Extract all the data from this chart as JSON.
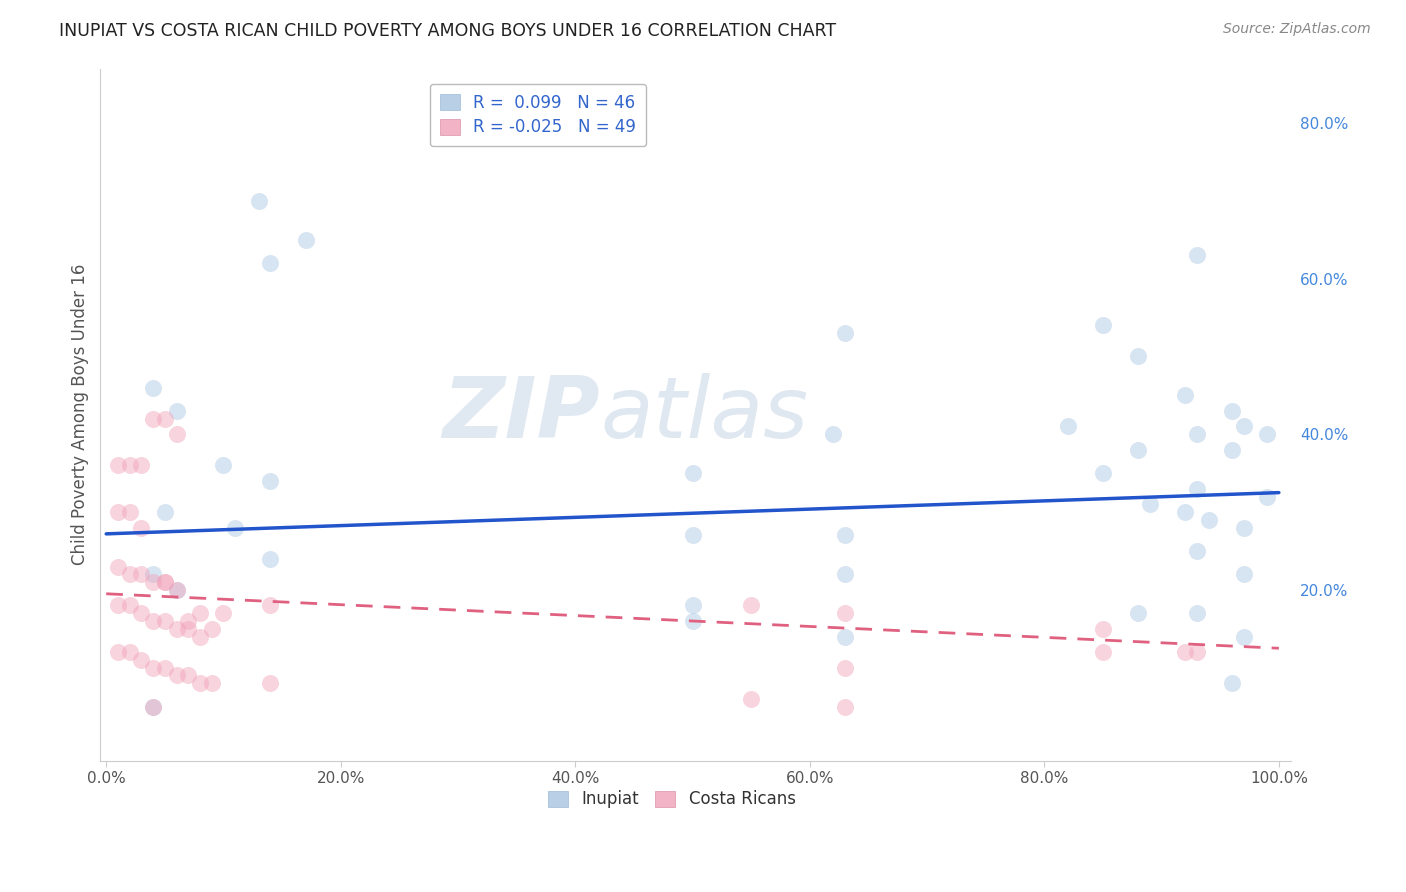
{
  "title": "INUPIAT VS COSTA RICAN CHILD POVERTY AMONG BOYS UNDER 16 CORRELATION CHART",
  "source": "Source: ZipAtlas.com",
  "ylabel": "Child Poverty Among Boys Under 16",
  "watermark_zip": "ZIP",
  "watermark_atlas": "atlas",
  "inupiat_color": "#a8c4e0",
  "costa_color": "#f0a0b8",
  "inupiat_line_color": "#2255cc",
  "costa_line_color": "#e06080",
  "right_axis_color": "#4488dd",
  "inupiat_x": [
    0.13,
    0.17,
    0.14,
    0.93,
    0.63,
    0.85,
    0.88,
    0.92,
    0.96,
    0.97,
    0.99,
    0.93,
    0.82,
    0.88,
    0.96,
    0.62,
    0.5,
    0.85,
    0.04,
    0.06,
    0.1,
    0.14,
    0.05,
    0.11,
    0.5,
    0.63,
    0.89,
    0.92,
    0.99,
    0.94,
    0.97,
    0.93,
    0.93,
    0.97,
    0.63,
    0.5,
    0.5,
    0.63,
    0.88,
    0.93,
    0.96,
    0.97,
    0.04,
    0.06,
    0.14,
    0.04
  ],
  "inupiat_y": [
    0.7,
    0.65,
    0.62,
    0.63,
    0.53,
    0.54,
    0.5,
    0.45,
    0.43,
    0.41,
    0.4,
    0.4,
    0.41,
    0.38,
    0.38,
    0.4,
    0.35,
    0.35,
    0.46,
    0.43,
    0.36,
    0.34,
    0.3,
    0.28,
    0.27,
    0.27,
    0.31,
    0.3,
    0.32,
    0.29,
    0.28,
    0.33,
    0.25,
    0.22,
    0.22,
    0.18,
    0.16,
    0.14,
    0.17,
    0.17,
    0.08,
    0.14,
    0.22,
    0.2,
    0.24,
    0.05
  ],
  "costa_x": [
    0.01,
    0.02,
    0.03,
    0.01,
    0.02,
    0.03,
    0.04,
    0.05,
    0.06,
    0.01,
    0.02,
    0.03,
    0.04,
    0.05,
    0.01,
    0.02,
    0.03,
    0.04,
    0.05,
    0.06,
    0.07,
    0.08,
    0.01,
    0.02,
    0.03,
    0.04,
    0.05,
    0.06,
    0.07,
    0.08,
    0.09,
    0.05,
    0.06,
    0.07,
    0.08,
    0.09,
    0.1,
    0.14,
    0.14,
    0.55,
    0.63,
    0.85,
    0.63,
    0.85,
    0.92,
    0.93,
    0.63,
    0.55,
    0.04
  ],
  "costa_y": [
    0.36,
    0.36,
    0.36,
    0.3,
    0.3,
    0.28,
    0.42,
    0.42,
    0.4,
    0.23,
    0.22,
    0.22,
    0.21,
    0.21,
    0.18,
    0.18,
    0.17,
    0.16,
    0.16,
    0.15,
    0.15,
    0.14,
    0.12,
    0.12,
    0.11,
    0.1,
    0.1,
    0.09,
    0.09,
    0.08,
    0.08,
    0.21,
    0.2,
    0.16,
    0.17,
    0.15,
    0.17,
    0.18,
    0.08,
    0.18,
    0.17,
    0.15,
    0.1,
    0.12,
    0.12,
    0.12,
    0.05,
    0.06,
    0.05
  ],
  "xlim": [
    0.0,
    1.0
  ],
  "ylim": [
    0.0,
    0.85
  ],
  "xticks": [
    0.0,
    0.2,
    0.4,
    0.6,
    0.8,
    1.0
  ],
  "xticklabels": [
    "0.0%",
    "20.0%",
    "40.0%",
    "60.0%",
    "80.0%",
    "100.0%"
  ],
  "yticks_right": [
    0.2,
    0.4,
    0.6,
    0.8
  ],
  "yticklabels_right": [
    "20.0%",
    "40.0%",
    "60.0%",
    "80.0%"
  ],
  "marker_size": 150,
  "marker_alpha": 0.45,
  "inupiat_line_start_y": 0.272,
  "inupiat_line_end_y": 0.325,
  "costa_line_start_y": 0.195,
  "costa_line_end_y": 0.125
}
